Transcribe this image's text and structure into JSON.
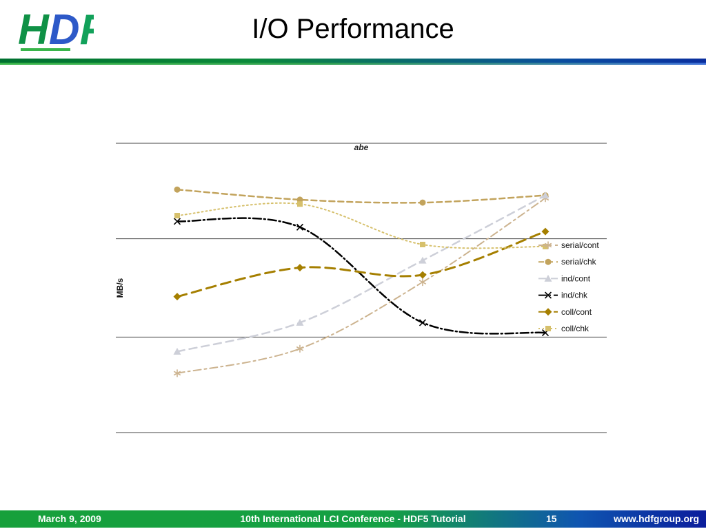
{
  "header": {
    "title": "I/O Performance",
    "logo": {
      "letters": [
        "H",
        "D",
        "F"
      ],
      "colors": [
        "#0f9146",
        "#2d59c8",
        "#12a15a"
      ]
    }
  },
  "footer": {
    "date": "March 9, 2009",
    "conference": "10th International LCI Conference - HDF5 Tutorial",
    "page_number": "15",
    "website": "www.hdfgroup.org"
  },
  "colors": {
    "header_bar_green": "#0b8a3a",
    "header_bar_blue": "#0a2e9e",
    "footer_green": "#17a03b",
    "footer_blue": "#0b1d9c",
    "gridline": "#444444"
  },
  "chart_data": {
    "type": "line",
    "title": "abe",
    "xlabel": "",
    "ylabel": "MB/s",
    "x_tick_labels": [],
    "ylim": [
      0,
      100
    ],
    "gridlines": [
      0,
      33,
      67,
      100
    ],
    "grid": "horizontal-only",
    "legend_position": "right-inside",
    "series": [
      {
        "name": "serial/cont",
        "values": [
          20.5,
          29,
          52,
          81
        ],
        "color": "#ccb38f",
        "marker": "star",
        "dash": "11,5,3,5",
        "width": 2
      },
      {
        "name": "serial/chk",
        "values": [
          84,
          80.5,
          79.5,
          82
        ],
        "color": "#c2a35c",
        "marker": "circle",
        "dash": "8,5",
        "width": 2.5
      },
      {
        "name": "ind/cont",
        "values": [
          28,
          38,
          59.5,
          82
        ],
        "color": "#cdcfd8",
        "marker": "triangle",
        "dash": "11,7",
        "width": 2.5
      },
      {
        "name": "ind/chk",
        "values": [
          73,
          71,
          38,
          34.5
        ],
        "color": "#000000",
        "marker": "x",
        "dash": "12,4,2,4",
        "width": 2.5
      },
      {
        "name": "coll/cont",
        "values": [
          47,
          57,
          54.5,
          69.5
        ],
        "color": "#a57f00",
        "marker": "diamond",
        "dash": "14,8",
        "width": 3
      },
      {
        "name": "coll/chk",
        "values": [
          75,
          79,
          65,
          64.3
        ],
        "color": "#d6c06c",
        "marker": "square",
        "dash": "2,4",
        "width": 2
      }
    ]
  }
}
